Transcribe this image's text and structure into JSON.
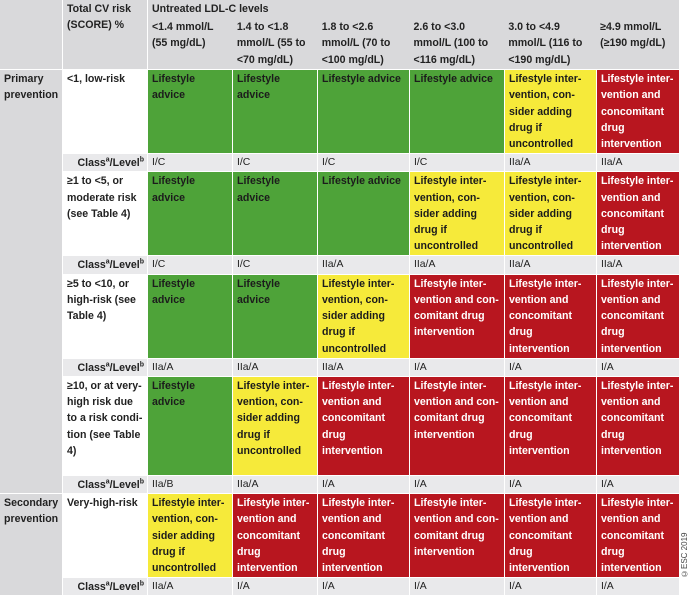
{
  "header": {
    "risk_col": "Total CV risk (SCORE) %",
    "ldl_title": "Untreated LDL-C levels",
    "levels": [
      "<1.4 mmol/L (55 mg/dL)",
      "1.4 to <1.8 mmol/L (55 to <70 mg/dL)",
      "1.8 to <2.6 mmol/L (70 to <100 mg/dL)",
      "2.6 to <3.0 mmol/L (100 to <116 mg/dL)",
      "3.0 to <4.9 mmol/L (116 to <190 mg/dL)",
      "≥4.9 mmol/L (≥190 mg/dL)"
    ]
  },
  "class_label": "Class",
  "class_sup_a": "a",
  "class_slash": "/Level",
  "class_sup_b": "b",
  "texts": {
    "lifestyle": "Lifestyle advice",
    "consider": "Lifestyle inter-vention, con-sider adding drug if uncontrolled",
    "concomitant": "Lifestyle inter-vention and concomitant drug intervention",
    "concomitant2": "Lifestyle inter-vention and con-comitant drug intervention"
  },
  "groups": {
    "primary": "Primary prevention",
    "secondary": "Secondary prevention"
  },
  "rows": [
    {
      "risk": "<1, low-risk",
      "cells": [
        "Lifestyle advice",
        "Lifestyle advice",
        "Lifestyle advice",
        "Lifestyle advice",
        "Lifestyle inter-vention, con-sider adding drug if uncontrolled",
        "Lifestyle inter-vention and concomitant drug intervention"
      ],
      "colors": [
        "green",
        "green",
        "green",
        "green",
        "yellow",
        "red"
      ],
      "classes": [
        "I/C",
        "I/C",
        "I/C",
        "I/C",
        "IIa/A",
        "IIa/A"
      ]
    },
    {
      "risk": "≥1 to <5, or moderate risk (see Table 4)",
      "cells": [
        "Lifestyle advice",
        "Lifestyle advice",
        "Lifestyle advice",
        "Lifestyle inter-vention, con-sider adding drug if uncontrolled",
        "Lifestyle inter-vention, con-sider adding drug if uncontrolled",
        "Lifestyle inter-vention and concomitant drug intervention"
      ],
      "colors": [
        "green",
        "green",
        "green",
        "yellow",
        "yellow",
        "red"
      ],
      "classes": [
        "I/C",
        "I/C",
        "IIa/A",
        "IIa/A",
        "IIa/A",
        "IIa/A"
      ]
    },
    {
      "risk": "≥5 to <10, or high-risk (see Table 4)",
      "cells": [
        "Lifestyle advice",
        "Lifestyle advice",
        "Lifestyle inter-vention, con-sider adding drug if uncontrolled",
        "Lifestyle inter-vention and con-comitant drug intervention",
        "Lifestyle inter-vention and concomitant drug intervention",
        "Lifestyle inter-vention and concomitant drug intervention"
      ],
      "colors": [
        "green",
        "green",
        "yellow",
        "red",
        "red",
        "red"
      ],
      "classes": [
        "IIa/A",
        "IIa/A",
        "IIa/A",
        "I/A",
        "I/A",
        "I/A"
      ]
    },
    {
      "risk": "≥10, or at very-high risk due to a risk condi-tion (see Table 4)",
      "cells": [
        "Lifestyle advice",
        "Lifestyle inter-vention, con-sider adding drug if uncontrolled",
        "Lifestyle inter-vention and concomitant drug intervention",
        "Lifestyle inter-vention and con-comitant drug intervention",
        "Lifestyle inter-vention and concomitant drug intervention",
        "Lifestyle inter-vention and concomitant drug intervention"
      ],
      "colors": [
        "green",
        "yellow",
        "red",
        "red",
        "red",
        "red"
      ],
      "classes": [
        "IIa/B",
        "IIa/A",
        "I/A",
        "I/A",
        "I/A",
        "I/A"
      ]
    },
    {
      "risk": "Very-high-risk",
      "cells": [
        "Lifestyle inter-vention, con-sider adding drug if uncontrolled",
        "Lifestyle inter-vention and concomitant drug intervention",
        "Lifestyle inter-vention and concomitant drug intervention",
        "Lifestyle inter-vention and con-comitant drug intervention",
        "Lifestyle inter-vention and concomitant drug intervention",
        "Lifestyle inter-vention and concomitant drug intervention"
      ],
      "colors": [
        "yellow",
        "red",
        "red",
        "red",
        "red",
        "red"
      ],
      "classes": [
        "IIa/A",
        "I/A",
        "I/A",
        "I/A",
        "I/A",
        "I/A"
      ]
    }
  ],
  "copyright": "©ESC 2019",
  "colors": {
    "green": "#4ea339",
    "yellow": "#f6ea3a",
    "red": "#b8161f",
    "grey": "#d9d9db"
  }
}
